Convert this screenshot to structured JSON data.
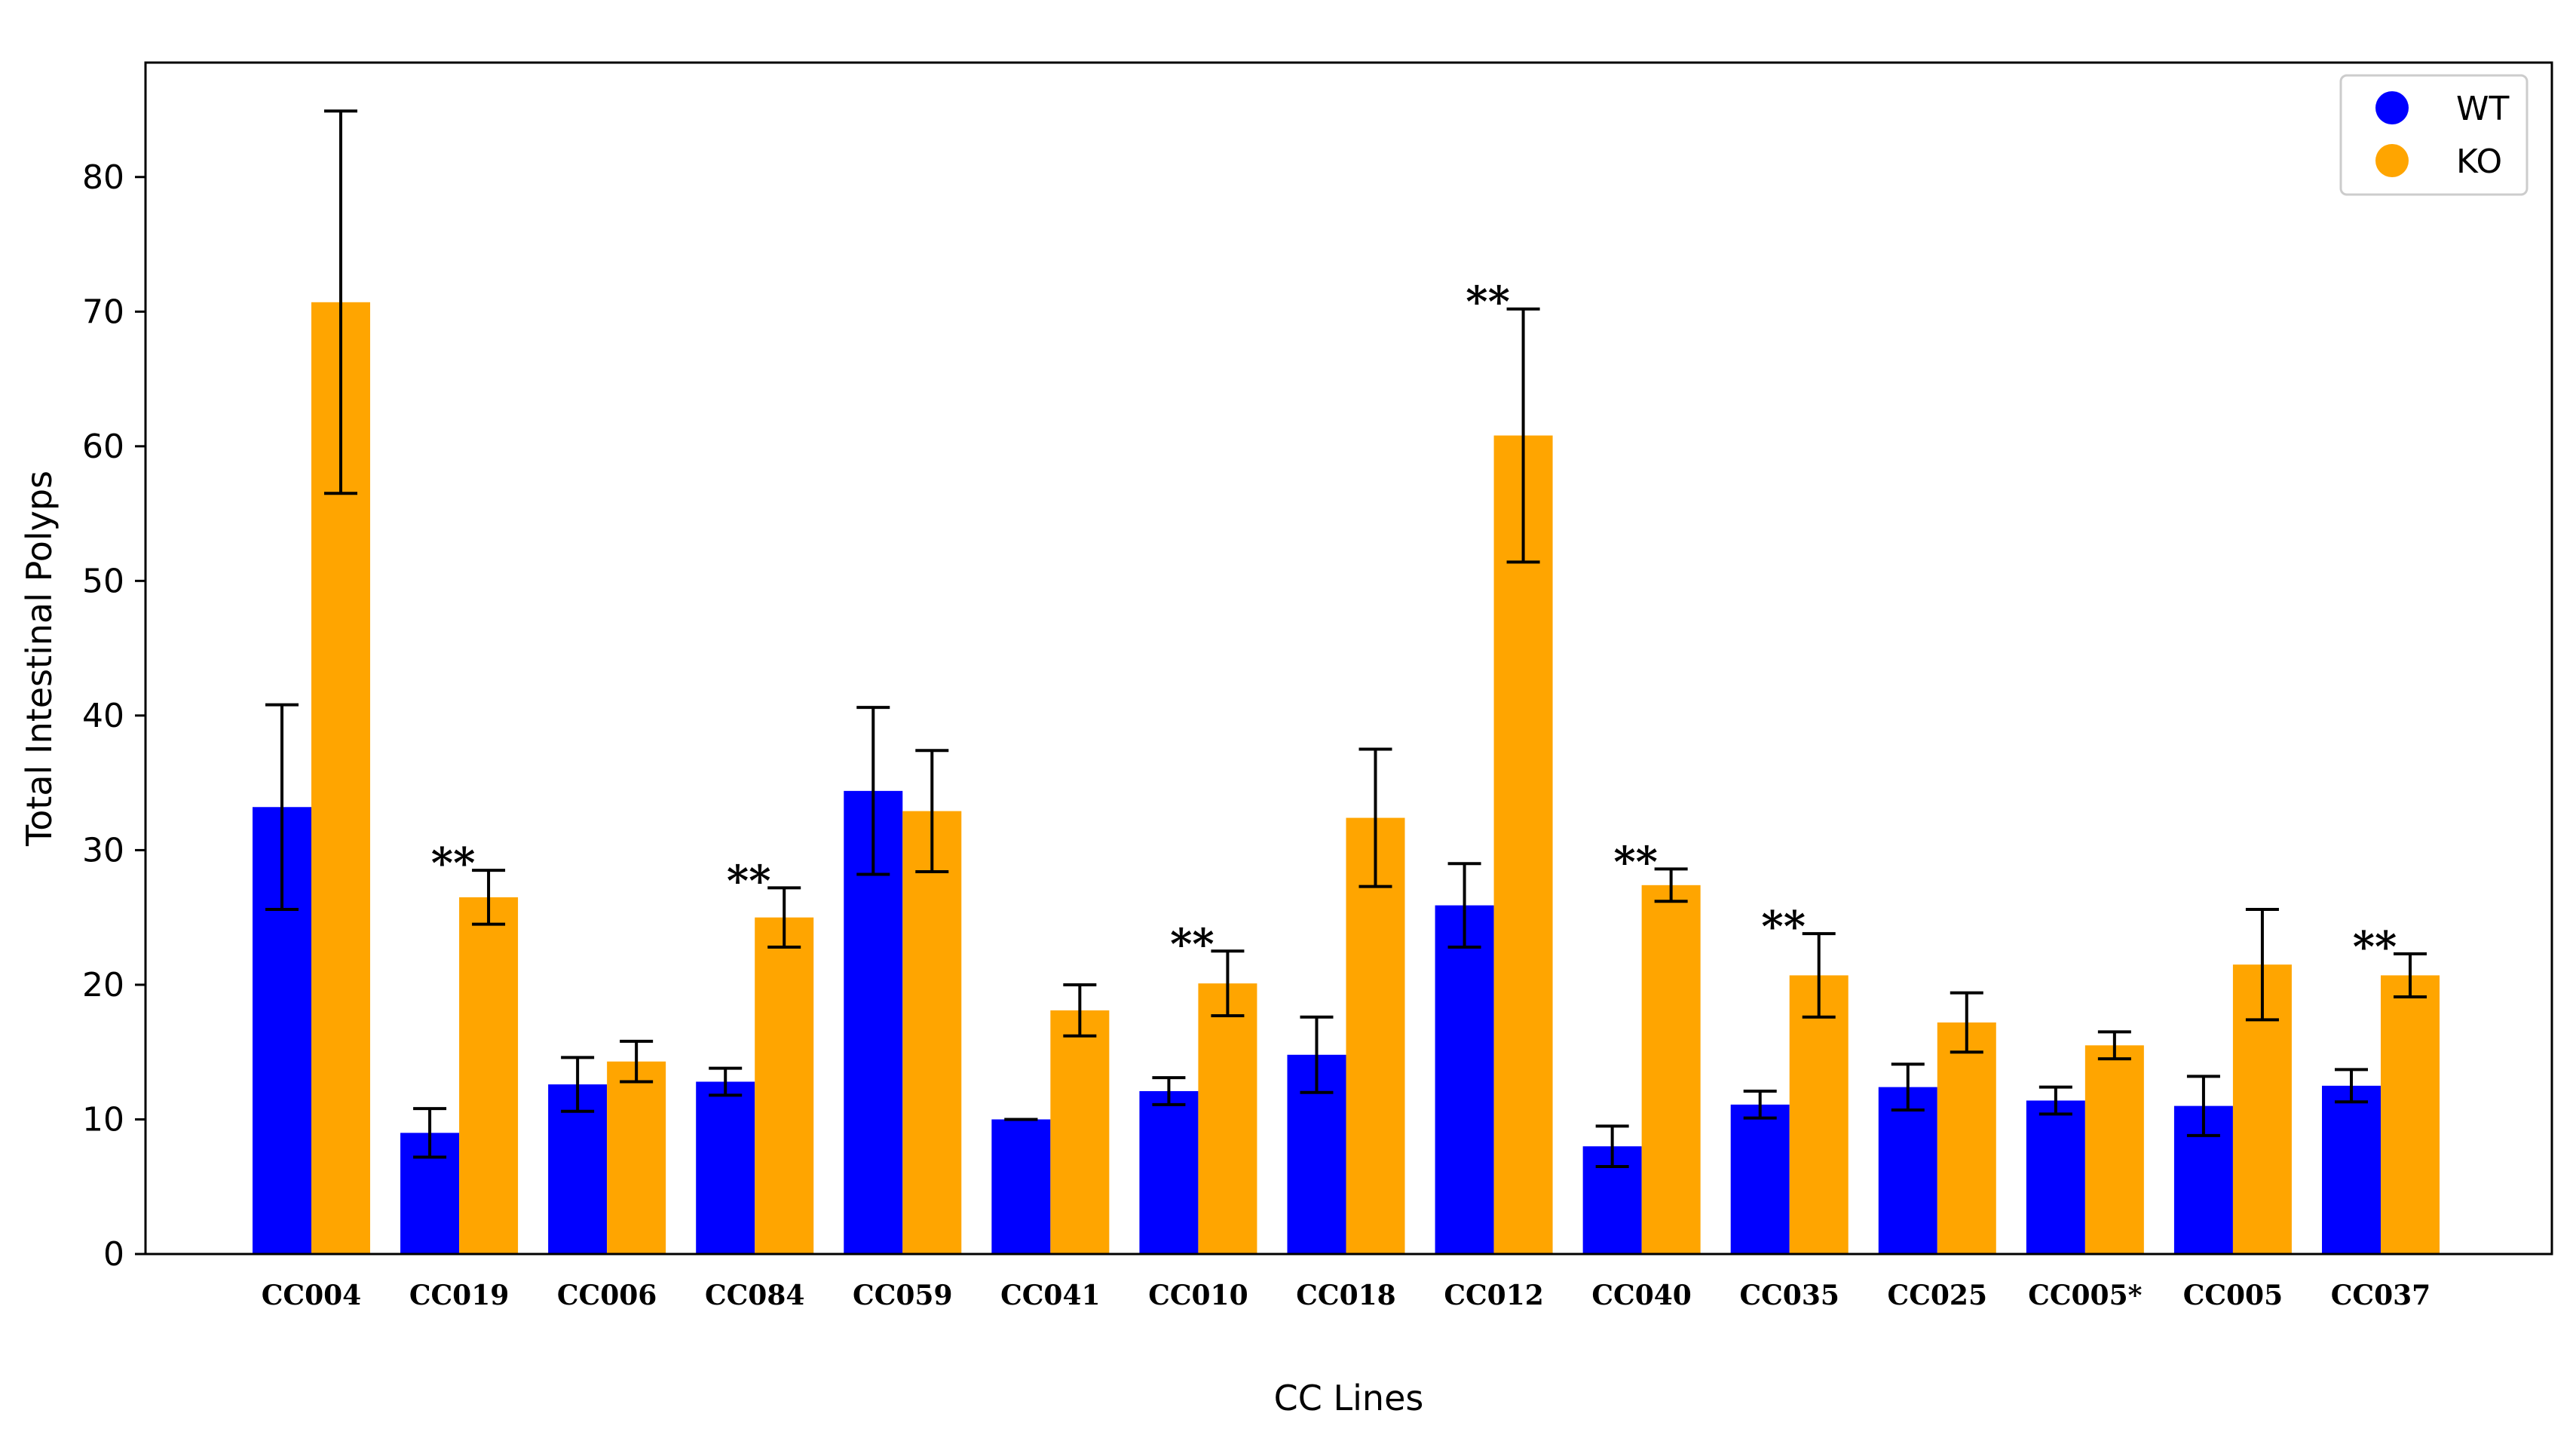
{
  "chart_data": {
    "type": "bar",
    "title": "",
    "xlabel": "CC Lines",
    "ylabel": "Total Intestinal Polyps",
    "ylim": [
      0,
      88.5
    ],
    "yticks": [
      0,
      10,
      20,
      30,
      40,
      50,
      60,
      70,
      80
    ],
    "grid": false,
    "legend_position": "top-right",
    "categories": [
      "CC004",
      "CC019",
      "CC006",
      "CC084",
      "CC059",
      "CC041",
      "CC010",
      "CC018",
      "CC012",
      "CC040",
      "CC035",
      "CC025",
      "CC005*",
      "CC005",
      "CC037"
    ],
    "series": [
      {
        "name": "WT",
        "color": "#0000ff",
        "values": [
          33.2,
          9.0,
          12.6,
          12.8,
          34.4,
          10.0,
          12.1,
          14.8,
          25.9,
          8.0,
          11.1,
          12.4,
          11.4,
          11.0,
          12.5
        ],
        "error": [
          7.6,
          1.8,
          2.0,
          1.0,
          6.2,
          0.0,
          1.0,
          2.8,
          3.1,
          1.5,
          1.0,
          1.7,
          1.0,
          2.2,
          1.2
        ]
      },
      {
        "name": "KO",
        "color": "#ffa500",
        "values": [
          70.7,
          26.5,
          14.3,
          25.0,
          32.9,
          18.1,
          20.1,
          32.4,
          60.8,
          27.4,
          20.7,
          17.2,
          15.5,
          21.5,
          20.7
        ],
        "error": [
          14.2,
          2.0,
          1.5,
          2.2,
          4.5,
          1.9,
          2.4,
          5.1,
          9.4,
          1.2,
          3.1,
          2.2,
          1.0,
          4.1,
          1.6
        ]
      }
    ],
    "annotations": [
      {
        "category": "CC019",
        "text": "**"
      },
      {
        "category": "CC084",
        "text": "**"
      },
      {
        "category": "CC010",
        "text": "**"
      },
      {
        "category": "CC012",
        "text": "**"
      },
      {
        "category": "CC040",
        "text": "**"
      },
      {
        "category": "CC035",
        "text": "**"
      },
      {
        "category": "CC037",
        "text": "**"
      }
    ]
  }
}
